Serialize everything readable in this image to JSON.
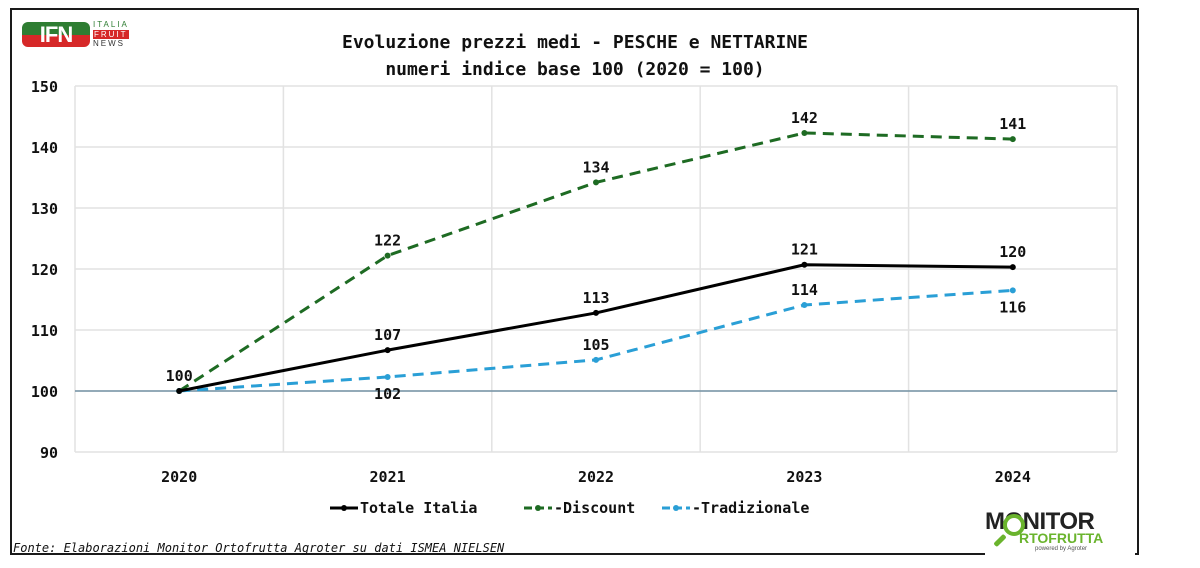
{
  "brand": {
    "ifn_mark": "IFN",
    "ifn_words": [
      "ITALIA",
      "FRUIT",
      "NEWS"
    ],
    "monitor_line1": "MONITOR",
    "monitor_line2": "RTOFRUTTA",
    "monitor_powered": "powered by Agroter"
  },
  "source_note": "Fonte: Elaborazioni Monitor Ortofrutta Agroter su dati ISMEA NIELSEN",
  "chart_data": {
    "type": "line",
    "title": "Evoluzione prezzi medi - PESCHE e NETTARINE",
    "subtitle": "numeri indice base 100 (2020 = 100)",
    "xlabel": "",
    "ylabel": "",
    "x": [
      "2020",
      "2021",
      "2022",
      "2023",
      "2024"
    ],
    "ylim": [
      90,
      150
    ],
    "yticks": [
      90,
      100,
      110,
      120,
      130,
      140,
      150
    ],
    "grid": true,
    "baseline": 100,
    "legend_position": "bottom",
    "series": [
      {
        "name": "Totale Italia",
        "color": "#000000",
        "style": "solid",
        "values": [
          100,
          106.7,
          112.8,
          120.7,
          120.3
        ],
        "labels": [
          "100",
          "107",
          "113",
          "121",
          "120"
        ],
        "label_pos": [
          "above",
          "above",
          "above",
          "above",
          "above"
        ]
      },
      {
        "name": "Discount",
        "color": "#1e6b23",
        "style": "dashed",
        "values": [
          100,
          122.2,
          134.2,
          142.3,
          141.3
        ],
        "labels": [
          "",
          "122",
          "134",
          "142",
          "141"
        ],
        "label_pos": [
          "above",
          "above",
          "above",
          "above",
          "above"
        ]
      },
      {
        "name": "Tradizionale",
        "color": "#2a9fd6",
        "style": "dashed",
        "values": [
          100,
          102.3,
          105.1,
          114.1,
          116.5
        ],
        "labels": [
          "",
          "102",
          "105",
          "114",
          "116"
        ],
        "label_pos": [
          "below",
          "below",
          "above",
          "above",
          "below"
        ]
      }
    ]
  }
}
